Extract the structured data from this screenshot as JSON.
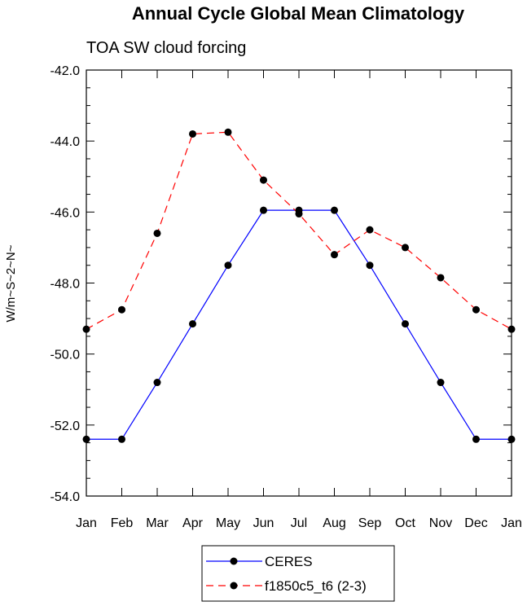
{
  "chart_data": {
    "type": "line",
    "title": "Annual Cycle Global Mean Climatology",
    "subtitle": "TOA SW cloud forcing",
    "ylabel": "W/m~S~2~N~",
    "xlabel": "",
    "categories": [
      "Jan",
      "Feb",
      "Mar",
      "Apr",
      "May",
      "Jun",
      "Jul",
      "Aug",
      "Sep",
      "Oct",
      "Nov",
      "Dec",
      "Jan"
    ],
    "ylim": [
      -54.0,
      -42.0
    ],
    "yticks": [
      "-42.0",
      "-44.0",
      "-46.0",
      "-48.0",
      "-50.0",
      "-52.0",
      "-54.0"
    ],
    "ytick_values": [
      -42,
      -44,
      -46,
      -48,
      -50,
      -52,
      -54
    ],
    "series": [
      {
        "name": "CERES",
        "color": "#0000ff",
        "dash": "solid",
        "values": [
          -52.4,
          -52.4,
          -50.8,
          -49.15,
          -47.5,
          -45.95,
          -45.95,
          -45.95,
          -47.5,
          -49.15,
          -50.8,
          -52.4,
          -52.4
        ]
      },
      {
        "name": "f1850c5_t6 (2-3)",
        "color": "#ff0000",
        "dash": "dashed",
        "values": [
          -49.3,
          -48.75,
          -46.6,
          -43.8,
          -43.75,
          -45.1,
          -46.05,
          -47.2,
          -46.5,
          -47.0,
          -47.85,
          -48.75,
          -49.3
        ]
      }
    ],
    "legend_position": "bottom-center"
  }
}
